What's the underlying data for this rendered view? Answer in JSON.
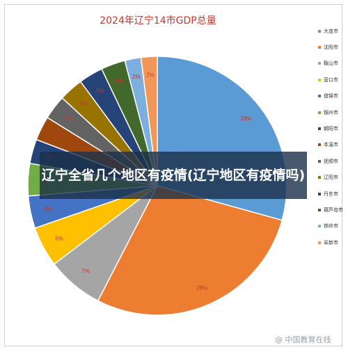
{
  "overlay_text": "辽宁全省几个地区有疫情(辽宁地区有疫情吗)",
  "watermark": "@ 中国教育在线",
  "chart_data": {
    "type": "pie",
    "title": "2024年辽宁14市GDP总量",
    "legend_position": "right",
    "slices": [
      {
        "name": "大连市",
        "value": 29,
        "label": "29%",
        "color": "#5b9bd5"
      },
      {
        "name": "沈阳市",
        "value": 28,
        "label": "28%",
        "color": "#ed7d31"
      },
      {
        "name": "鞍山市",
        "value": 7,
        "label": "7%",
        "color": "#a5a5a5"
      },
      {
        "name": "营口市",
        "value": 5,
        "label": "5%",
        "color": "#ffc000"
      },
      {
        "name": "盘锦市",
        "value": 4,
        "label": "4%",
        "color": "#4472c4"
      },
      {
        "name": "锦州市",
        "value": 4,
        "label": "4%",
        "color": "#70ad47"
      },
      {
        "name": "朝阳市",
        "value": 3,
        "label": "3%",
        "color": "#264478"
      },
      {
        "name": "本溪市",
        "value": 3,
        "label": "3%",
        "color": "#9e480e"
      },
      {
        "name": "抚顺市",
        "value": 3,
        "label": "3%",
        "color": "#636363"
      },
      {
        "name": "辽阳市",
        "value": 3,
        "label": "3%",
        "color": "#997300"
      },
      {
        "name": "丹东市",
        "value": 3,
        "label": "3%",
        "color": "#264478"
      },
      {
        "name": "葫芦岛市",
        "value": 3,
        "label": "3%",
        "color": "#43682b"
      },
      {
        "name": "铁岭市",
        "value": 2,
        "label": "2%",
        "color": "#7cafdd"
      },
      {
        "name": "阜新市",
        "value": 2,
        "label": "2%",
        "color": "#f1975a"
      }
    ]
  }
}
